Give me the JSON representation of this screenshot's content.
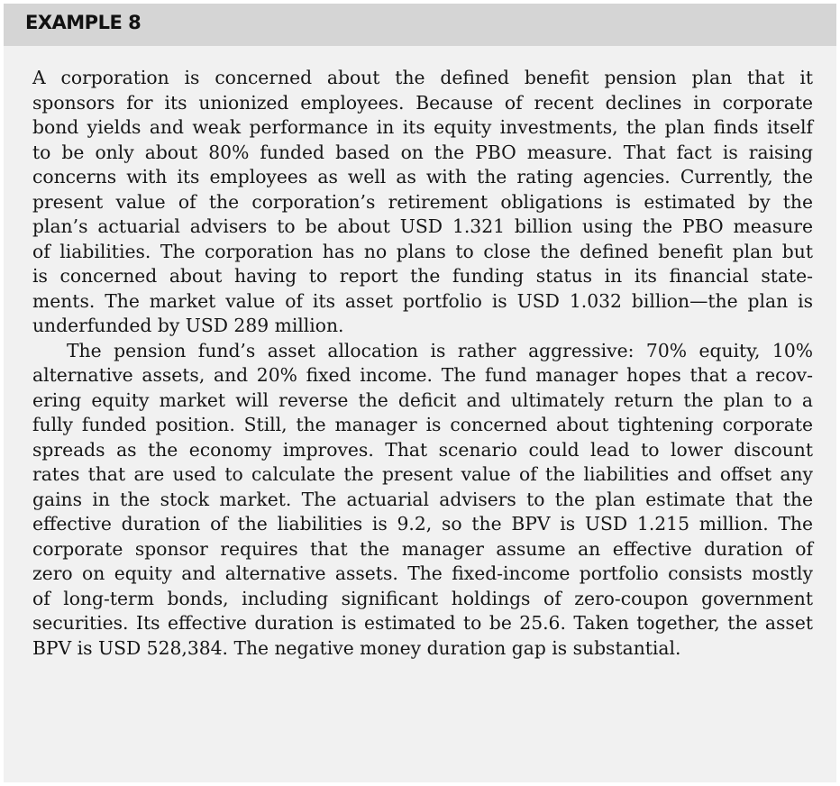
{
  "header": {
    "title": "EXAMPLE 8"
  },
  "paragraphs": [
    {
      "lines": [
        "A corporation is concerned about the defined benefit pension plan that it",
        "sponsors for its unionized employees. Because of recent declines in corporate",
        "bond yields and weak performance in its equity investments, the plan finds itself",
        "to be only about 80% funded based on the PBO measure. That fact is raising",
        "concerns with its employees as well as with the rating agencies. Currently, the",
        "present value of the corporation’s retirement obligations is estimated by the",
        "plan’s actuarial advisers to be about USD 1.321 billion using the PBO measure",
        "of liabilities. The corporation has no plans to close the defined benefit plan but",
        "is concerned about having to report the funding status in its financial state-",
        "ments. The market value of its asset portfolio is USD 1.032 billion—the plan is",
        "underfunded by USD 289 million."
      ]
    },
    {
      "lines": [
        "The pension fund’s asset allocation is rather aggressive: 70% equity, 10%",
        "alternative assets, and 20% fixed income. The fund manager hopes that a recov-",
        "ering equity market will reverse the deficit and ultimately return the plan to a",
        "fully funded position. Still, the manager is concerned about tightening corporate",
        "spreads as the economy improves. That scenario could lead to lower discount",
        "rates that are used to calculate the present value of the liabilities and offset any",
        "gains in the stock market. The actuarial advisers to the plan estimate that the",
        "effective duration of the liabilities is 9.2, so the BPV is USD 1.215 million. The",
        "corporate sponsor requires that the manager assume an effective duration of",
        "zero on equity and alternative assets. The fixed-income portfolio consists mostly",
        "of long-term bonds, including significant holdings of zero-coupon government",
        "securities. Its effective duration is estimated to be 25.6. Taken together, the asset",
        "BPV is USD 528,384. The negative money duration gap is substantial."
      ]
    }
  ]
}
